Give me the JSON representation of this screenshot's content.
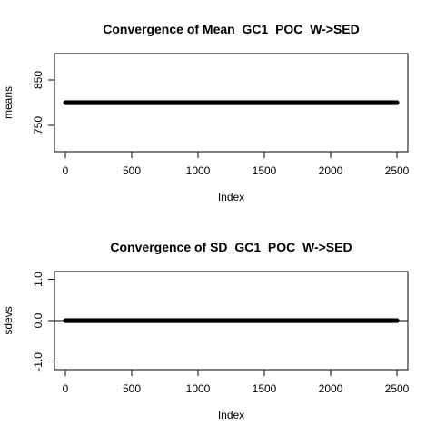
{
  "chart_data": [
    {
      "type": "scatter",
      "title": "Convergence of Mean_GC1_POC_W->SED",
      "xlabel": "Index",
      "ylabel": "means",
      "xlim": [
        0,
        2500
      ],
      "ylim": [
        700,
        900
      ],
      "x_ticks": [
        "0",
        "500",
        "1000",
        "1500",
        "2000",
        "2500"
      ],
      "y_ticks": [
        "750",
        "850"
      ],
      "reference_line": null,
      "series": [
        {
          "x_start": 1,
          "x_end": 2500,
          "y_constant": 800,
          "color": "#000000"
        }
      ]
    },
    {
      "type": "scatter",
      "title": "Convergence of SD_GC1_POC_W->SED",
      "xlabel": "Index",
      "ylabel": "sdevs",
      "xlim": [
        0,
        2500
      ],
      "ylim": [
        -1.1,
        1.1
      ],
      "x_ticks": [
        "0",
        "500",
        "1000",
        "1500",
        "2000",
        "2500"
      ],
      "y_ticks": [
        "-1.0",
        "0.0",
        "1.0"
      ],
      "reference_line": 0,
      "series": [
        {
          "x_start": 1,
          "x_end": 2500,
          "y_constant": 0,
          "color": "#000000"
        }
      ]
    }
  ]
}
